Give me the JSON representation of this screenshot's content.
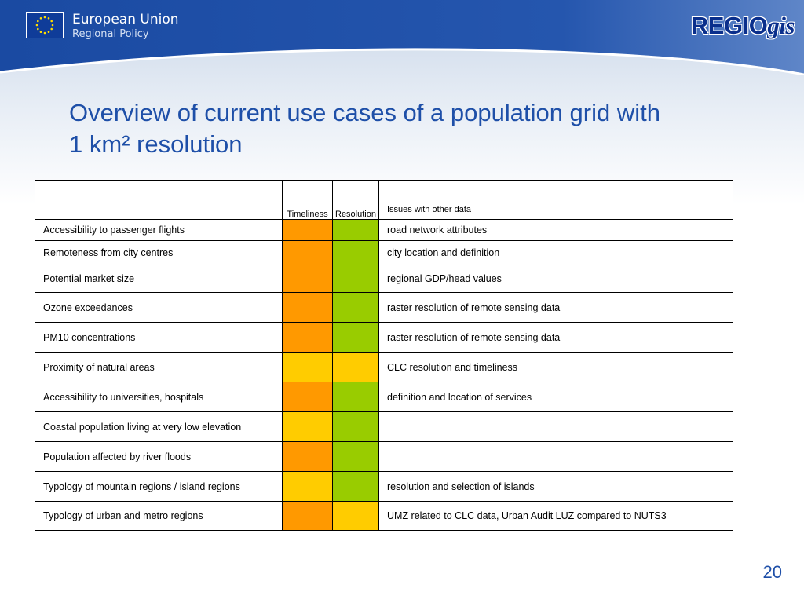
{
  "header": {
    "org_name": "European Union",
    "org_sub": "Regional Policy",
    "logo_main": "REGIO",
    "logo_suffix": "gis"
  },
  "title_line1": "Overview of current use cases of a population grid with",
  "title_line2": "1 km² resolution",
  "table": {
    "columns": [
      "",
      "Timeliness",
      "Resolution",
      "Issues with other data"
    ],
    "rows": [
      {
        "use_case": "Accessibility to passenger flights",
        "timeliness": "orange",
        "resolution": "green",
        "issues": "road network attributes"
      },
      {
        "use_case": "Remoteness from city centres",
        "timeliness": "orange",
        "resolution": "green",
        "issues": "city location and definition"
      },
      {
        "use_case": "Potential market size",
        "timeliness": "orange",
        "resolution": "green",
        "issues": "regional GDP/head values"
      },
      {
        "use_case": "Ozone exceedances",
        "timeliness": "orange",
        "resolution": "green",
        "issues": "raster resolution of remote sensing data"
      },
      {
        "use_case": "PM10 concentrations",
        "timeliness": "orange",
        "resolution": "green",
        "issues": "raster resolution of remote sensing data"
      },
      {
        "use_case": "Proximity of natural areas",
        "timeliness": "yellow",
        "resolution": "yellow",
        "issues": "CLC resolution and timeliness"
      },
      {
        "use_case": "Accessibility to universities, hospitals",
        "timeliness": "orange",
        "resolution": "green",
        "issues": "definition and location of services"
      },
      {
        "use_case": "Coastal population living at very low elevation",
        "timeliness": "yellow",
        "resolution": "green",
        "issues": ""
      },
      {
        "use_case": "Population affected by river floods",
        "timeliness": "orange",
        "resolution": "green",
        "issues": ""
      },
      {
        "use_case": "Typology of mountain regions / island regions",
        "timeliness": "yellow",
        "resolution": "green",
        "issues": "resolution and selection of islands"
      },
      {
        "use_case": "Typology of urban and metro regions",
        "timeliness": "orange",
        "resolution": "yellow",
        "issues": "UMZ related to CLC data, Urban Audit LUZ compared to NUTS3"
      }
    ]
  },
  "status_colors": {
    "orange": "#ff9900",
    "green": "#99cc00",
    "yellow": "#ffcc00"
  },
  "page_number": "20"
}
